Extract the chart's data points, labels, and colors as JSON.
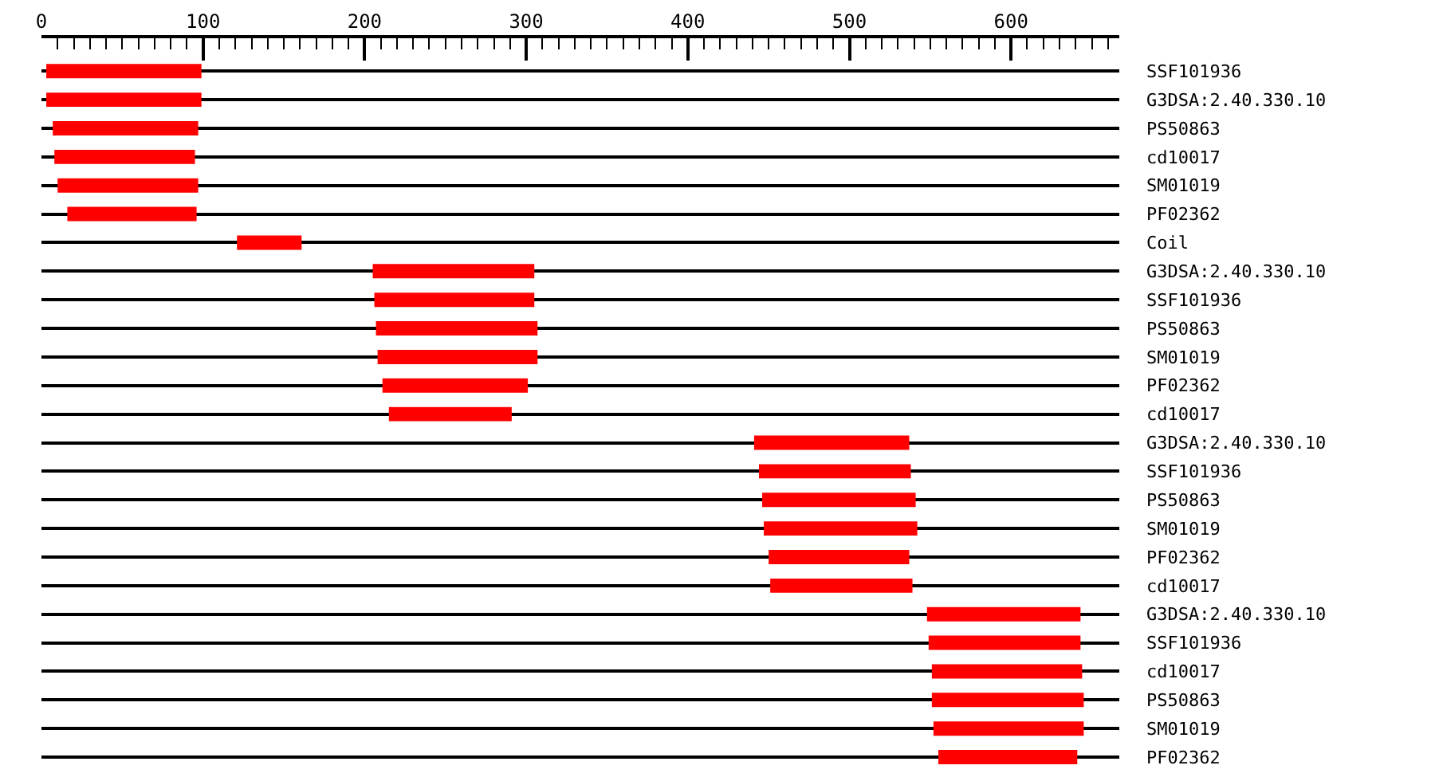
{
  "chart_data": {
    "type": "bar",
    "orientation": "horizontal",
    "categories": [
      "SSF101936",
      "G3DSA:2.40.330.10",
      "PS50863",
      "cd10017",
      "SM01019",
      "PF02362",
      "Coil",
      "G3DSA:2.40.330.10",
      "SSF101936",
      "PS50863",
      "SM01019",
      "PF02362",
      "cd10017",
      "G3DSA:2.40.330.10",
      "SSF101936",
      "PS50863",
      "SM01019",
      "PF02362",
      "cd10017",
      "G3DSA:2.40.330.10",
      "SSF101936",
      "cd10017",
      "PS50863",
      "SM01019",
      "PF02362"
    ],
    "base": [
      3,
      3,
      7,
      8,
      10,
      16,
      121,
      205,
      206,
      207,
      208,
      211,
      215,
      441,
      444,
      446,
      447,
      450,
      451,
      548,
      549,
      551,
      551,
      552,
      555
    ],
    "values": [
      96,
      96,
      90,
      87,
      87,
      80,
      40,
      100,
      99,
      100,
      99,
      90,
      76,
      96,
      94,
      95,
      95,
      87,
      88,
      95,
      94,
      93,
      94,
      93,
      86
    ],
    "color": "#ff0000",
    "xlim": [
      0,
      667
    ],
    "xticks": [
      0,
      {
        "value": 10,
        "label": null
      },
      {
        "value": 20,
        "label": null
      },
      {
        "value": 30,
        "label": null
      },
      {
        "value": 40,
        "label": null
      },
      {
        "value": 50,
        "label": null
      },
      {
        "value": 60,
        "label": null
      },
      {
        "value": 70,
        "label": null
      },
      {
        "value": 80,
        "label": null
      },
      {
        "value": 90,
        "label": null
      },
      100,
      {
        "value": 110,
        "label": null
      },
      {
        "value": 120,
        "label": null
      },
      {
        "value": 130,
        "label": null
      },
      {
        "value": 140,
        "label": null
      },
      {
        "value": 150,
        "label": null
      },
      {
        "value": 160,
        "label": null
      },
      {
        "value": 170,
        "label": null
      },
      {
        "value": 180,
        "label": null
      },
      {
        "value": 190,
        "label": null
      },
      200,
      {
        "value": 210,
        "label": null
      },
      {
        "value": 220,
        "label": null
      },
      {
        "value": 230,
        "label": null
      },
      {
        "value": 240,
        "label": null
      },
      {
        "value": 250,
        "label": null
      },
      {
        "value": 260,
        "label": null
      },
      {
        "value": 270,
        "label": null
      },
      {
        "value": 280,
        "label": null
      },
      {
        "value": 290,
        "label": null
      },
      300,
      {
        "value": 310,
        "label": null
      },
      {
        "value": 320,
        "label": null
      },
      {
        "value": 330,
        "label": null
      },
      {
        "value": 340,
        "label": null
      },
      {
        "value": 350,
        "label": null
      },
      {
        "value": 360,
        "label": null
      },
      {
        "value": 370,
        "label": null
      },
      {
        "value": 380,
        "label": null
      },
      {
        "value": 390,
        "label": null
      },
      400,
      {
        "value": 410,
        "label": null
      },
      {
        "value": 420,
        "label": null
      },
      {
        "value": 430,
        "label": null
      },
      {
        "value": 440,
        "label": null
      },
      {
        "value": 450,
        "label": null
      },
      {
        "value": 460,
        "label": null
      },
      {
        "value": 470,
        "label": null
      },
      {
        "value": 480,
        "label": null
      },
      {
        "value": 490,
        "label": null
      },
      500,
      {
        "value": 510,
        "label": null
      },
      {
        "value": 520,
        "label": null
      },
      {
        "value": 530,
        "label": null
      },
      {
        "value": 540,
        "label": null
      },
      {
        "value": 550,
        "label": null
      },
      {
        "value": 560,
        "label": null
      },
      {
        "value": 570,
        "label": null
      },
      {
        "value": 580,
        "label": null
      },
      {
        "value": 590,
        "label": null
      },
      600,
      {
        "value": 610,
        "label": null
      },
      {
        "value": 620,
        "label": null
      },
      {
        "value": 630,
        "label": null
      },
      {
        "value": 640,
        "label": null
      },
      {
        "value": 650,
        "label": null
      },
      {
        "value": 660,
        "label": null
      }
    ],
    "grid": "y",
    "legend": false
  }
}
